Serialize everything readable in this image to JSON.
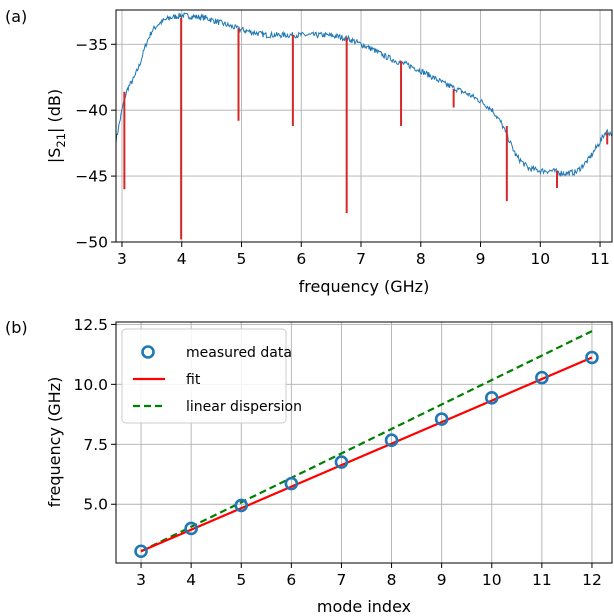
{
  "chart_data": [
    {
      "panel_label": "(a)",
      "type": "line",
      "xlabel": "frequency (GHz)",
      "ylabel_main": "|S",
      "ylabel_sub": "21",
      "ylabel_tail": "| (dB)",
      "xlim": [
        2.9,
        11.2
      ],
      "ylim": [
        -50,
        -32.4
      ],
      "xticks": [
        3,
        4,
        5,
        6,
        7,
        8,
        9,
        10,
        11
      ],
      "xtick_labels": [
        "3",
        "4",
        "5",
        "6",
        "7",
        "8",
        "9",
        "10",
        "11"
      ],
      "yticks": [
        -50,
        -45,
        -40,
        -35
      ],
      "ytick_labels": [
        "−50",
        "−45",
        "−40",
        "−35"
      ],
      "grid": true,
      "series": [
        {
          "color": "#1f77b4",
          "envelope": [
            [
              2.9,
              -42.3
            ],
            [
              3.0,
              -40.0
            ],
            [
              3.05,
              -39.0
            ],
            [
              3.1,
              -38.3
            ],
            [
              3.2,
              -37.6
            ],
            [
              3.3,
              -36.5
            ],
            [
              3.4,
              -35.0
            ],
            [
              3.5,
              -34.0
            ],
            [
              3.6,
              -33.5
            ],
            [
              3.7,
              -33.2
            ],
            [
              3.8,
              -33.0
            ],
            [
              3.9,
              -32.9
            ],
            [
              4.0,
              -32.8
            ],
            [
              4.2,
              -32.9
            ],
            [
              4.4,
              -33.0
            ],
            [
              4.6,
              -33.3
            ],
            [
              4.8,
              -33.6
            ],
            [
              5.0,
              -33.9
            ],
            [
              5.2,
              -34.1
            ],
            [
              5.4,
              -34.3
            ],
            [
              5.6,
              -34.3
            ],
            [
              5.8,
              -34.3
            ],
            [
              6.0,
              -34.3
            ],
            [
              6.2,
              -34.3
            ],
            [
              6.4,
              -34.3
            ],
            [
              6.6,
              -34.4
            ],
            [
              6.8,
              -34.6
            ],
            [
              7.0,
              -35.0
            ],
            [
              7.2,
              -35.4
            ],
            [
              7.4,
              -35.9
            ],
            [
              7.6,
              -36.3
            ],
            [
              7.8,
              -36.6
            ],
            [
              8.0,
              -37.0
            ],
            [
              8.2,
              -37.5
            ],
            [
              8.4,
              -38.0
            ],
            [
              8.6,
              -38.4
            ],
            [
              8.8,
              -38.8
            ],
            [
              9.0,
              -39.3
            ],
            [
              9.2,
              -40.0
            ],
            [
              9.35,
              -41.0
            ],
            [
              9.5,
              -42.5
            ],
            [
              9.6,
              -43.5
            ],
            [
              9.8,
              -44.4
            ],
            [
              10.0,
              -44.6
            ],
            [
              10.2,
              -44.6
            ],
            [
              10.4,
              -44.8
            ],
            [
              10.6,
              -44.7
            ],
            [
              10.8,
              -43.8
            ],
            [
              11.0,
              -42.4
            ],
            [
              11.1,
              -41.6
            ],
            [
              11.2,
              -41.8
            ]
          ],
          "noise_amplitude_db": 0.22
        },
        {
          "color": "#d62728",
          "resonances": [
            {
              "x": 3.04,
              "y_top": -38.6,
              "y_bottom": -46.0
            },
            {
              "x": 3.99,
              "y_top": -33.0,
              "y_bottom": -49.8
            },
            {
              "x": 4.95,
              "y_top": -33.8,
              "y_bottom": -40.8
            },
            {
              "x": 5.86,
              "y_top": -34.3,
              "y_bottom": -41.2
            },
            {
              "x": 6.76,
              "y_top": -34.5,
              "y_bottom": -47.8
            },
            {
              "x": 7.67,
              "y_top": -36.3,
              "y_bottom": -41.2
            },
            {
              "x": 8.55,
              "y_top": -38.4,
              "y_bottom": -39.8
            },
            {
              "x": 9.44,
              "y_top": -41.2,
              "y_bottom": -46.9
            },
            {
              "x": 10.28,
              "y_top": -44.6,
              "y_bottom": -45.9
            },
            {
              "x": 11.12,
              "y_top": -41.7,
              "y_bottom": -42.6
            }
          ]
        }
      ]
    },
    {
      "panel_label": "(b)",
      "type": "scatter",
      "xlabel": "mode index",
      "ylabel": "frequency (GHz)",
      "xlim": [
        2.5,
        12.4
      ],
      "ylim": [
        2.55,
        12.6
      ],
      "xticks": [
        3,
        4,
        5,
        6,
        7,
        8,
        9,
        10,
        11,
        12
      ],
      "xtick_labels": [
        "3",
        "4",
        "5",
        "6",
        "7",
        "8",
        "9",
        "10",
        "11",
        "12"
      ],
      "yticks": [
        5.0,
        7.5,
        10.0,
        12.5
      ],
      "ytick_labels": [
        "5.0",
        "7.5",
        "10.0",
        "12.5"
      ],
      "grid": true,
      "legend_position": "top-left",
      "series": [
        {
          "name": "measured data",
          "kind": "markers",
          "color": "#1f77b4",
          "x": [
            3,
            4,
            5,
            6,
            7,
            8,
            9,
            10,
            11,
            12
          ],
          "y": [
            3.04,
            3.99,
            4.95,
            5.86,
            6.76,
            7.67,
            8.55,
            9.44,
            10.28,
            11.12
          ]
        },
        {
          "name": "fit",
          "kind": "line",
          "color": "#ff0000",
          "x": [
            3,
            12
          ],
          "y": [
            3.04,
            11.12
          ]
        },
        {
          "name": "linear dispersion",
          "kind": "dashed",
          "color": "#008000",
          "x": [
            3,
            12
          ],
          "y": [
            3.04,
            12.22
          ]
        }
      ]
    }
  ]
}
